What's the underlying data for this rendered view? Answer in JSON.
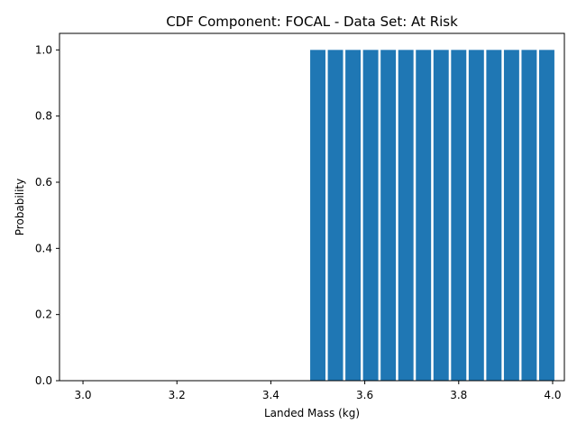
{
  "chart_data": {
    "type": "bar",
    "title": "CDF Component: FOCAL - Data Set: At Risk",
    "xlabel": "Landed Mass (kg)",
    "ylabel": "Probability",
    "xlim": [
      2.95,
      4.025
    ],
    "ylim": [
      0,
      1.05
    ],
    "x": [
      3.5,
      3.5375,
      3.575,
      3.6125,
      3.65,
      3.6875,
      3.725,
      3.7625,
      3.8,
      3.8375,
      3.875,
      3.9125,
      3.95,
      3.9875
    ],
    "values": [
      1,
      1,
      1,
      1,
      1,
      1,
      1,
      1,
      1,
      1,
      1,
      1,
      1,
      1
    ],
    "bar_width": 0.0325,
    "xticks": [
      {
        "value": 3.0,
        "label": "3.0"
      },
      {
        "value": 3.2,
        "label": "3.2"
      },
      {
        "value": 3.4,
        "label": "3.4"
      },
      {
        "value": 3.6,
        "label": "3.6"
      },
      {
        "value": 3.8,
        "label": "3.8"
      },
      {
        "value": 4.0,
        "label": "4.0"
      }
    ],
    "yticks": [
      {
        "value": 0.0,
        "label": "0.0"
      },
      {
        "value": 0.2,
        "label": "0.2"
      },
      {
        "value": 0.4,
        "label": "0.4"
      },
      {
        "value": 0.6,
        "label": "0.6"
      },
      {
        "value": 0.8,
        "label": "0.8"
      },
      {
        "value": 1.0,
        "label": "1.0"
      }
    ],
    "bar_color": "#1f77b4",
    "grid": false,
    "legend": "none"
  }
}
